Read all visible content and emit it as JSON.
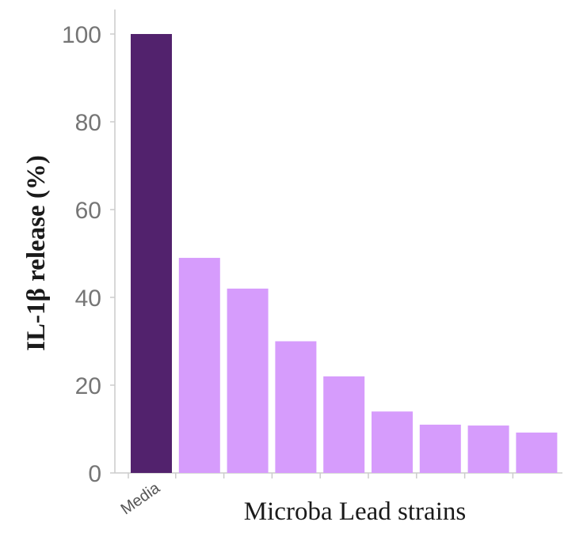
{
  "chart_data": {
    "type": "bar",
    "title": "",
    "xlabel": "Microba Lead strains",
    "ylabel": "IL-1β release (%)",
    "ylim": [
      0,
      105
    ],
    "yticks": [
      0,
      20,
      40,
      60,
      80,
      100
    ],
    "categories": [
      "Media",
      "",
      "",
      "",
      "",
      "",
      "",
      "",
      ""
    ],
    "values": [
      100,
      49,
      42,
      30,
      22,
      14,
      11,
      10.8,
      9.2
    ],
    "colors": {
      "highlight": "#52226d",
      "default": "#d69cfc",
      "axis": "#cccccc"
    },
    "grid": false
  }
}
